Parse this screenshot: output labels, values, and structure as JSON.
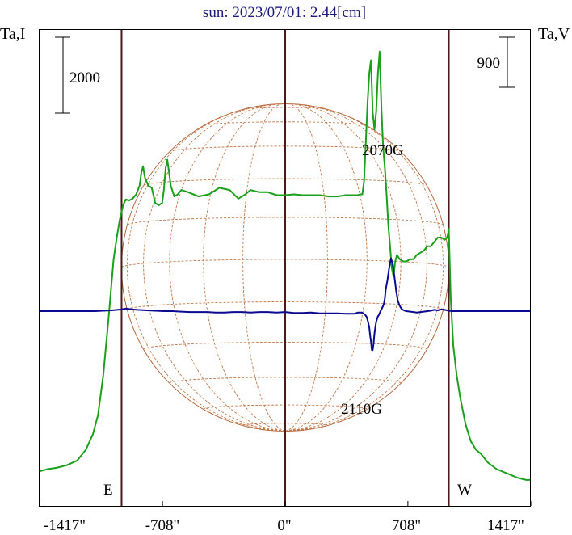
{
  "chart_data": {
    "type": "line",
    "title": "sun: 2023/07/01: 2.44[cm]",
    "left_axis_label": "Ta,I",
    "right_axis_label": "Ta,V",
    "left_scale_bar": "2000",
    "right_scale_bar": "900",
    "x_tick_labels": [
      "-1417\"",
      "-708\"",
      "0\"",
      "708\"",
      "1417\""
    ],
    "x_ticks": [
      -1417,
      -708,
      0,
      708,
      1417
    ],
    "xlim": [
      -1417,
      1417
    ],
    "limb_labels": {
      "east": "E",
      "west": "W"
    },
    "limb_positions": [
      -944,
      0,
      944
    ],
    "annotations": [
      {
        "text": "2070G",
        "x": 590,
        "y": 2700,
        "series": "I"
      },
      {
        "text": "2110G",
        "x": 500,
        "y": -2350,
        "series": "V"
      }
    ],
    "ylim": [
      -4500,
      6500
    ],
    "series": [
      {
        "name": "I",
        "color": "#1aa01a",
        "x": [
          -1417,
          -1370,
          -1320,
          -1260,
          -1200,
          -1150,
          -1110,
          -1080,
          -1050,
          -1020,
          -990,
          -970,
          -955,
          -944,
          -935,
          -920,
          -900,
          -880,
          -860,
          -840,
          -830,
          -820,
          -810,
          -790,
          -770,
          -750,
          -730,
          -710,
          -700,
          -690,
          -680,
          -670,
          -660,
          -640,
          -620,
          -600,
          -560,
          -500,
          -440,
          -380,
          -320,
          -270,
          -230,
          -200,
          -150,
          -100,
          -50,
          0,
          50,
          100,
          150,
          200,
          250,
          300,
          350,
          400,
          420,
          435,
          445,
          455,
          465,
          475,
          485,
          495,
          505,
          515,
          525,
          535,
          545,
          555,
          565,
          575,
          585,
          595,
          605,
          615,
          625,
          635,
          645,
          660,
          680,
          700,
          720,
          740,
          760,
          780,
          800,
          820,
          840,
          860,
          880,
          900,
          920,
          935,
          944,
          955,
          970,
          990,
          1010,
          1040,
          1070,
          1100,
          1130,
          1170,
          1220,
          1280,
          1340,
          1390,
          1417
        ],
        "y": [
          -3700,
          -3650,
          -3620,
          -3560,
          -3450,
          -3200,
          -2850,
          -2400,
          -1500,
          -200,
          1200,
          1750,
          2100,
          2300,
          2450,
          2580,
          2560,
          2600,
          2700,
          2900,
          3200,
          3350,
          3100,
          2900,
          2850,
          2500,
          2450,
          2500,
          2800,
          3300,
          3500,
          3200,
          2900,
          2650,
          2700,
          2800,
          2750,
          2650,
          2700,
          2850,
          2800,
          2600,
          2700,
          2800,
          2750,
          2750,
          2680,
          2680,
          2700,
          2680,
          2680,
          2680,
          2650,
          2650,
          2680,
          2680,
          2680,
          2700,
          2700,
          3000,
          3900,
          4800,
          5500,
          5800,
          4600,
          4200,
          4600,
          5500,
          6000,
          4700,
          3800,
          3300,
          2700,
          2000,
          1500,
          1000,
          800,
          1150,
          1300,
          1200,
          1150,
          1150,
          1200,
          1200,
          1300,
          1350,
          1400,
          1500,
          1500,
          1600,
          1700,
          1700,
          1650,
          1700,
          1900,
          300,
          -800,
          -1500,
          -2000,
          -2600,
          -3000,
          -3200,
          -3300,
          -3500,
          -3650,
          -3750,
          -3850,
          -3900,
          -3900
        ]
      },
      {
        "name": "V",
        "color": "#0a0a90",
        "x": [
          -1417,
          -1300,
          -1200,
          -1100,
          -1050,
          -1000,
          -970,
          -944,
          -920,
          -880,
          -850,
          -800,
          -750,
          -700,
          -650,
          -600,
          -550,
          -500,
          -450,
          -400,
          -350,
          -300,
          -250,
          -200,
          -150,
          -100,
          -50,
          0,
          50,
          100,
          150,
          200,
          250,
          300,
          350,
          400,
          420,
          440,
          450,
          460,
          470,
          475,
          480,
          485,
          490,
          495,
          500,
          505,
          510,
          515,
          520,
          525,
          530,
          535,
          540,
          545,
          550,
          555,
          560,
          565,
          570,
          575,
          580,
          590,
          600,
          610,
          620,
          630,
          640,
          650,
          660,
          670,
          680,
          690,
          700,
          720,
          740,
          760,
          780,
          800,
          820,
          840,
          860,
          880,
          900,
          920,
          944,
          960,
          980,
          1000,
          1100,
          1200,
          1300,
          1417
        ],
        "y": [
          0,
          0,
          0,
          0,
          10,
          20,
          30,
          40,
          60,
          40,
          30,
          20,
          10,
          0,
          0,
          -10,
          -20,
          -20,
          -20,
          -30,
          -30,
          -20,
          -20,
          -30,
          -20,
          -20,
          -30,
          -20,
          -40,
          -40,
          -30,
          -50,
          -50,
          -50,
          -60,
          -60,
          -30,
          -30,
          -50,
          -80,
          -130,
          -200,
          -280,
          -380,
          -550,
          -700,
          -900,
          -900,
          -750,
          -520,
          -370,
          -250,
          -180,
          -120,
          -90,
          -50,
          0,
          40,
          80,
          120,
          180,
          300,
          500,
          720,
          1000,
          1220,
          1100,
          800,
          480,
          240,
          130,
          60,
          30,
          10,
          0,
          -10,
          -20,
          -30,
          -20,
          -10,
          0,
          10,
          30,
          20,
          40,
          30,
          10,
          0,
          0,
          0,
          0,
          0,
          0,
          0
        ]
      }
    ]
  }
}
